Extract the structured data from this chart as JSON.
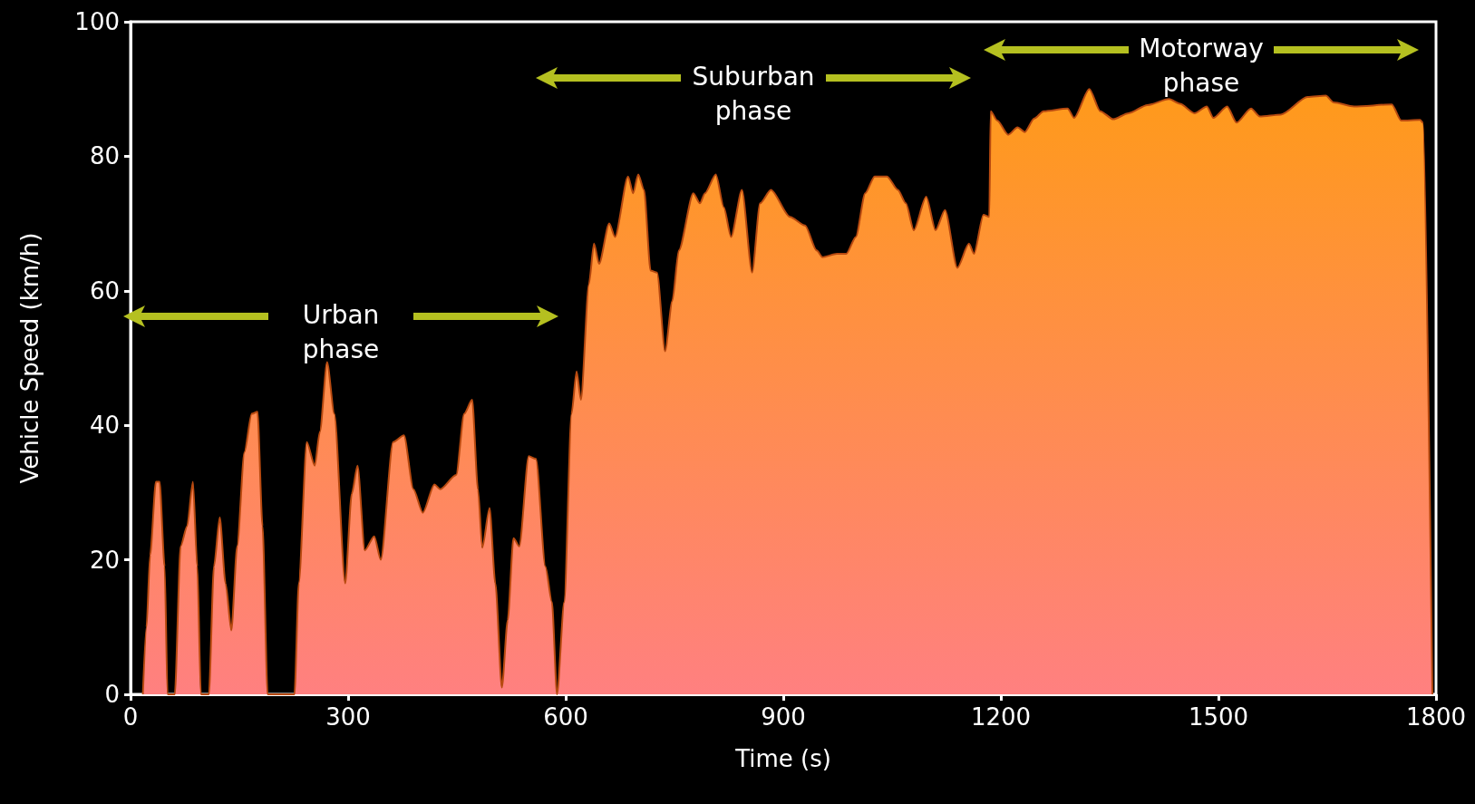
{
  "chart_data": {
    "type": "area",
    "xlabel": "Time (s)",
    "ylabel": "Vehicle Speed (km/h)",
    "xlim": [
      0,
      1800
    ],
    "xticks": [
      0,
      300,
      600,
      900,
      1200,
      1500,
      1800
    ],
    "ylim": [
      0,
      100
    ],
    "yticks": [
      0,
      20,
      40,
      60,
      80,
      100
    ],
    "grid": false,
    "annotations": [
      "Urban phase",
      "Suburban phase",
      "Motorway phase"
    ],
    "series": [
      {
        "color": "#ff9a1a",
        "x": [
          17,
          22,
          27,
          35,
          40,
          47,
          51,
          61,
          69,
          78,
          86,
          92,
          97,
          108,
          115,
          123,
          131,
          139,
          147,
          157,
          167,
          175,
          182,
          189,
          226,
          232,
          243,
          254,
          261,
          271,
          281,
          296,
          305,
          313,
          323,
          336,
          345,
          362,
          377,
          390,
          403,
          419,
          427,
          449,
          460,
          471,
          479,
          485,
          495,
          503,
          512,
          520,
          528,
          536,
          549,
          559,
          572,
          581,
          588,
          598,
          608,
          615,
          621,
          632,
          639,
          646,
          660,
          668,
          686,
          693,
          700,
          708,
          717,
          726,
          737,
          747,
          756,
          776,
          785,
          792,
          807,
          818,
          828,
          843,
          857,
          868,
          883,
          909,
          930,
          946,
          954,
          974,
          987,
          1000,
          1013,
          1026,
          1043,
          1058,
          1069,
          1080,
          1097,
          1110,
          1123,
          1140,
          1156,
          1163,
          1176,
          1184,
          1186,
          1195,
          1210,
          1223,
          1233,
          1246,
          1259,
          1292,
          1301,
          1322,
          1337,
          1355,
          1376,
          1402,
          1432,
          1447,
          1467,
          1484,
          1493,
          1512,
          1525,
          1545,
          1557,
          1586,
          1623,
          1648,
          1659,
          1687,
          1739,
          1752,
          1778,
          1782,
          1795
        ],
        "values": [
          0,
          10,
          20.7,
          31.6,
          31.6,
          19,
          0,
          0,
          22,
          25,
          31.6,
          19,
          0,
          0,
          19,
          26.3,
          16.5,
          9.5,
          22,
          36,
          41.7,
          42,
          25,
          0,
          0,
          16.5,
          37.5,
          34,
          39,
          49.4,
          41.7,
          16.5,
          29.8,
          34,
          21.4,
          23.5,
          20,
          37.5,
          38.5,
          30.5,
          27,
          31.2,
          30.5,
          32.6,
          41.7,
          43.8,
          30.5,
          21.8,
          27.7,
          16.5,
          1,
          11,
          23.2,
          22,
          35.4,
          35,
          19,
          13.7,
          0,
          13.7,
          41.7,
          48,
          43.8,
          61,
          67,
          64,
          70,
          68,
          77,
          74.5,
          77.3,
          75,
          63,
          62.7,
          51,
          58.5,
          66,
          74.5,
          73,
          74.5,
          77.3,
          72.4,
          68,
          75,
          62.7,
          73,
          75,
          71,
          69.7,
          66,
          65,
          65.5,
          65.5,
          68,
          74.5,
          77,
          77,
          75,
          73,
          69,
          74,
          69,
          72,
          63.4,
          67,
          65.5,
          71.3,
          71,
          86.7,
          85.3,
          83.2,
          84.3,
          83.6,
          85.6,
          86.7,
          87.1,
          85.7,
          90,
          86.7,
          85.5,
          86.4,
          87.6,
          88.5,
          87.8,
          86.4,
          87.4,
          85.7,
          87.4,
          85,
          87.1,
          85.9,
          86.2,
          88.8,
          89,
          88,
          87.4,
          87.7,
          85.3,
          85.4,
          85,
          0
        ]
      }
    ]
  }
}
